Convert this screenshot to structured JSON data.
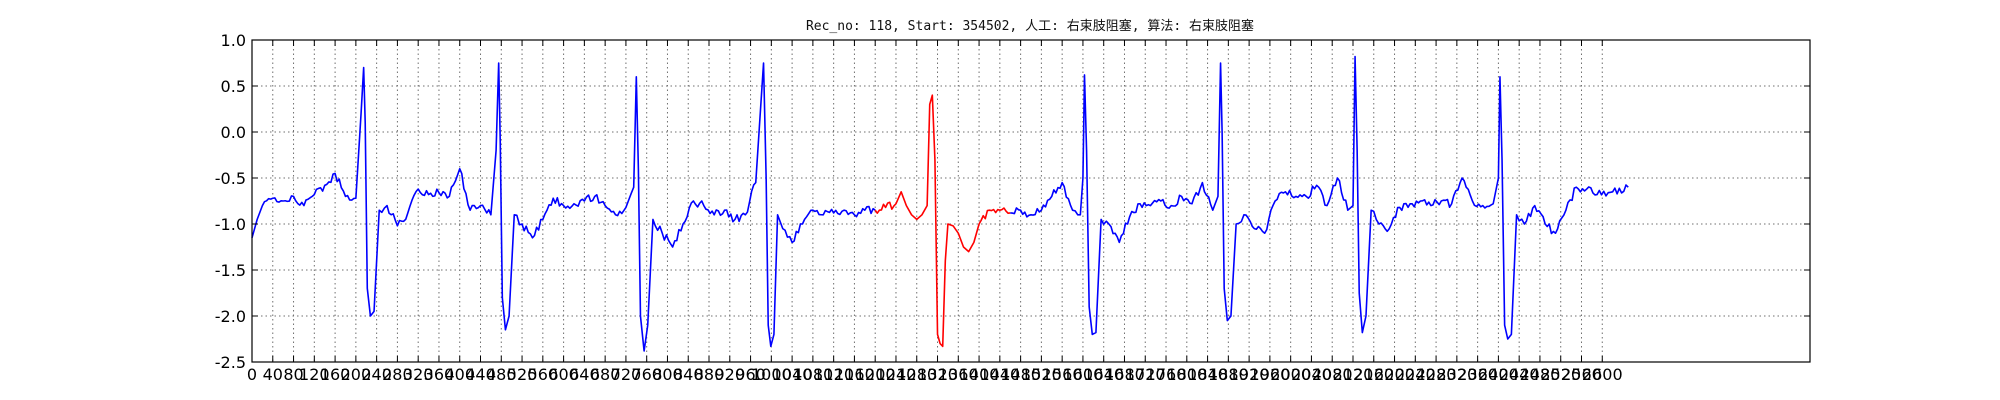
{
  "chart_data": {
    "type": "line",
    "title": "Rec_no: 118, Start: 354502, 人工: 右束肢阻塞, 算法: 右束肢阻塞",
    "xlabel": "",
    "ylabel": "",
    "xlim": [
      0,
      3000
    ],
    "ylim": [
      -2.5,
      1.0
    ],
    "grid": true,
    "yticks": [
      1.0,
      0.5,
      0.0,
      -0.5,
      -1.0,
      -1.5,
      -2.0,
      -2.5
    ],
    "ytick_labels": [
      "1.0",
      "0.5",
      "0.0",
      "-0.5",
      "-1.0",
      "-1.5",
      "-2.0",
      "-2.5"
    ],
    "xticks": [
      0,
      40,
      80,
      120,
      160,
      200,
      240,
      280,
      320,
      360,
      400,
      440,
      480,
      520,
      560,
      600,
      640,
      680,
      720,
      760,
      800,
      840,
      880,
      920,
      960,
      1000,
      1040,
      1080,
      1120,
      1160,
      1200,
      1240,
      1280,
      1320,
      1360,
      1400,
      1440,
      1480,
      1520,
      1560,
      1600,
      1640,
      1680,
      1720,
      1760,
      1800,
      1840,
      1880,
      1920,
      1960,
      2000,
      2040,
      2080,
      2120,
      2160,
      2200,
      2240,
      2280,
      2320,
      2360,
      2400,
      2440,
      2480,
      2520,
      2560,
      2600
    ],
    "series": [
      {
        "color": "#0000ff",
        "style": "continuous-trace",
        "x": [
          0,
          10,
          20,
          40,
          60,
          80,
          100,
          120,
          140,
          160,
          180,
          200,
          210,
          215,
          218,
          222,
          228,
          235,
          245,
          260,
          280,
          300,
          320,
          340,
          360,
          380,
          400,
          420,
          440,
          460,
          470,
          475,
          478,
          482,
          488,
          495,
          505,
          520,
          540,
          560,
          580,
          600,
          620,
          640,
          660,
          680,
          700,
          720,
          735,
          740,
          744,
          748,
          755,
          762,
          772,
          790,
          810,
          830,
          850,
          870,
          890,
          910,
          930,
          950,
          970,
          985,
          990,
          994,
          999,
          1005,
          1012,
          1022,
          1040,
          1060,
          1080,
          1100,
          1120,
          1140,
          1160,
          1180,
          1200
        ],
        "y": [
          -1.15,
          -0.95,
          -0.8,
          -0.72,
          -0.75,
          -0.7,
          -0.8,
          -0.68,
          -0.58,
          -0.45,
          -0.7,
          -0.72,
          0.2,
          0.7,
          0.1,
          -1.7,
          -2.0,
          -1.95,
          -0.85,
          -0.8,
          -1.02,
          -0.88,
          -0.62,
          -0.68,
          -0.66,
          -0.7,
          -0.4,
          -0.85,
          -0.8,
          -0.9,
          -0.2,
          0.75,
          -0.1,
          -1.8,
          -2.15,
          -2.0,
          -0.9,
          -1.0,
          -1.15,
          -0.95,
          -0.72,
          -0.8,
          -0.78,
          -0.75,
          -0.7,
          -0.8,
          -0.9,
          -0.82,
          -0.6,
          0.6,
          -0.4,
          -2.0,
          -2.38,
          -2.1,
          -0.95,
          -1.1,
          -1.25,
          -1.0,
          -0.75,
          -0.8,
          -0.9,
          -0.85,
          -0.95,
          -0.9,
          -0.55,
          0.75,
          -0.5,
          -2.1,
          -2.33,
          -2.2,
          -0.9,
          -1.05,
          -1.2,
          -1.0,
          -0.85,
          -0.9,
          -0.88,
          -0.85,
          -0.9,
          -0.85,
          -0.85
        ]
      },
      {
        "color": "#ff0000",
        "style": "continuous-trace",
        "x": [
          1200,
          1220,
          1240,
          1250,
          1260,
          1270,
          1280,
          1290,
          1300,
          1305,
          1310,
          1315,
          1320,
          1325,
          1330,
          1335,
          1340,
          1350,
          1360,
          1370,
          1380,
          1390,
          1400,
          1420,
          1440,
          1460
        ],
        "y": [
          -0.85,
          -0.82,
          -0.78,
          -0.65,
          -0.8,
          -0.9,
          -0.95,
          -0.9,
          -0.8,
          0.3,
          0.4,
          -0.3,
          -2.2,
          -2.3,
          -2.33,
          -1.4,
          -1.0,
          -1.02,
          -1.1,
          -1.25,
          -1.3,
          -1.2,
          -1.0,
          -0.85,
          -0.85,
          -0.88
        ]
      },
      {
        "color": "#0000ff",
        "style": "continuous-trace",
        "x": [
          1460,
          1480,
          1500,
          1520,
          1540,
          1560,
          1580,
          1595,
          1600,
          1603,
          1607,
          1612,
          1618,
          1625,
          1635,
          1650,
          1670,
          1690,
          1710,
          1730,
          1750,
          1770,
          1790,
          1810,
          1830,
          1850,
          1860,
          1865,
          1868,
          1872,
          1878,
          1885,
          1895,
          1910,
          1930,
          1950,
          1970,
          1990,
          2010,
          2030,
          2050,
          2070,
          2090,
          2110,
          2120,
          2124,
          2128,
          2132,
          2138,
          2145,
          2155,
          2170,
          2190,
          2210,
          2230,
          2250,
          2270,
          2290,
          2310,
          2330,
          2350,
          2370,
          2390,
          2400,
          2403,
          2407,
          2412,
          2418,
          2425,
          2435,
          2450,
          2470,
          2490,
          2510,
          2530,
          2550,
          2570,
          2590,
          2620,
          2650
        ],
        "y": [
          -0.88,
          -0.85,
          -0.9,
          -0.85,
          -0.7,
          -0.55,
          -0.85,
          -0.9,
          -0.5,
          0.62,
          -0.2,
          -1.9,
          -2.2,
          -2.18,
          -0.95,
          -1.0,
          -1.2,
          -0.92,
          -0.78,
          -0.8,
          -0.75,
          -0.8,
          -0.7,
          -0.78,
          -0.55,
          -0.85,
          -0.7,
          0.75,
          0.0,
          -1.7,
          -2.05,
          -2.0,
          -1.0,
          -0.9,
          -1.05,
          -1.1,
          -0.75,
          -0.65,
          -0.7,
          -0.7,
          -0.58,
          -0.8,
          -0.5,
          -0.85,
          -0.8,
          0.82,
          -0.2,
          -1.75,
          -2.18,
          -2.0,
          -0.85,
          -1.0,
          -1.05,
          -0.82,
          -0.78,
          -0.75,
          -0.8,
          -0.75,
          -0.78,
          -0.5,
          -0.75,
          -0.8,
          -0.78,
          -0.5,
          0.6,
          -0.3,
          -2.1,
          -2.25,
          -2.2,
          -0.9,
          -1.0,
          -0.8,
          -1.0,
          -1.1,
          -0.85,
          -0.6,
          -0.62,
          -0.68,
          -0.65,
          -0.6
        ]
      }
    ]
  }
}
